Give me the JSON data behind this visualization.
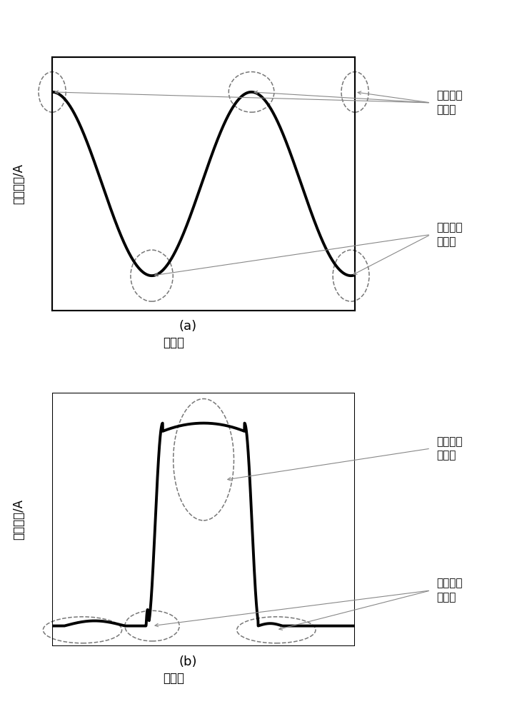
{
  "fig_width": 7.31,
  "fig_height": 10.0,
  "dpi": 100,
  "bg_color": "#ffffff",
  "panel_a": {
    "ylabel": "正弦电流/A",
    "xlabel": "采样点",
    "caption": "(a)",
    "dense_label_line1": "数值分布",
    "dense_label_line2": "稠密区",
    "sparse_label_line1": "数值分布",
    "sparse_label_line2": "稀疏区"
  },
  "panel_b": {
    "ylabel": "励磁电流/A",
    "xlabel": "采样点",
    "caption": "(b)",
    "sparse_label_line1": "数值分布",
    "sparse_label_line2": "稀疏区",
    "dense_label_line1": "数值分布",
    "dense_label_line2": "稠密区"
  }
}
